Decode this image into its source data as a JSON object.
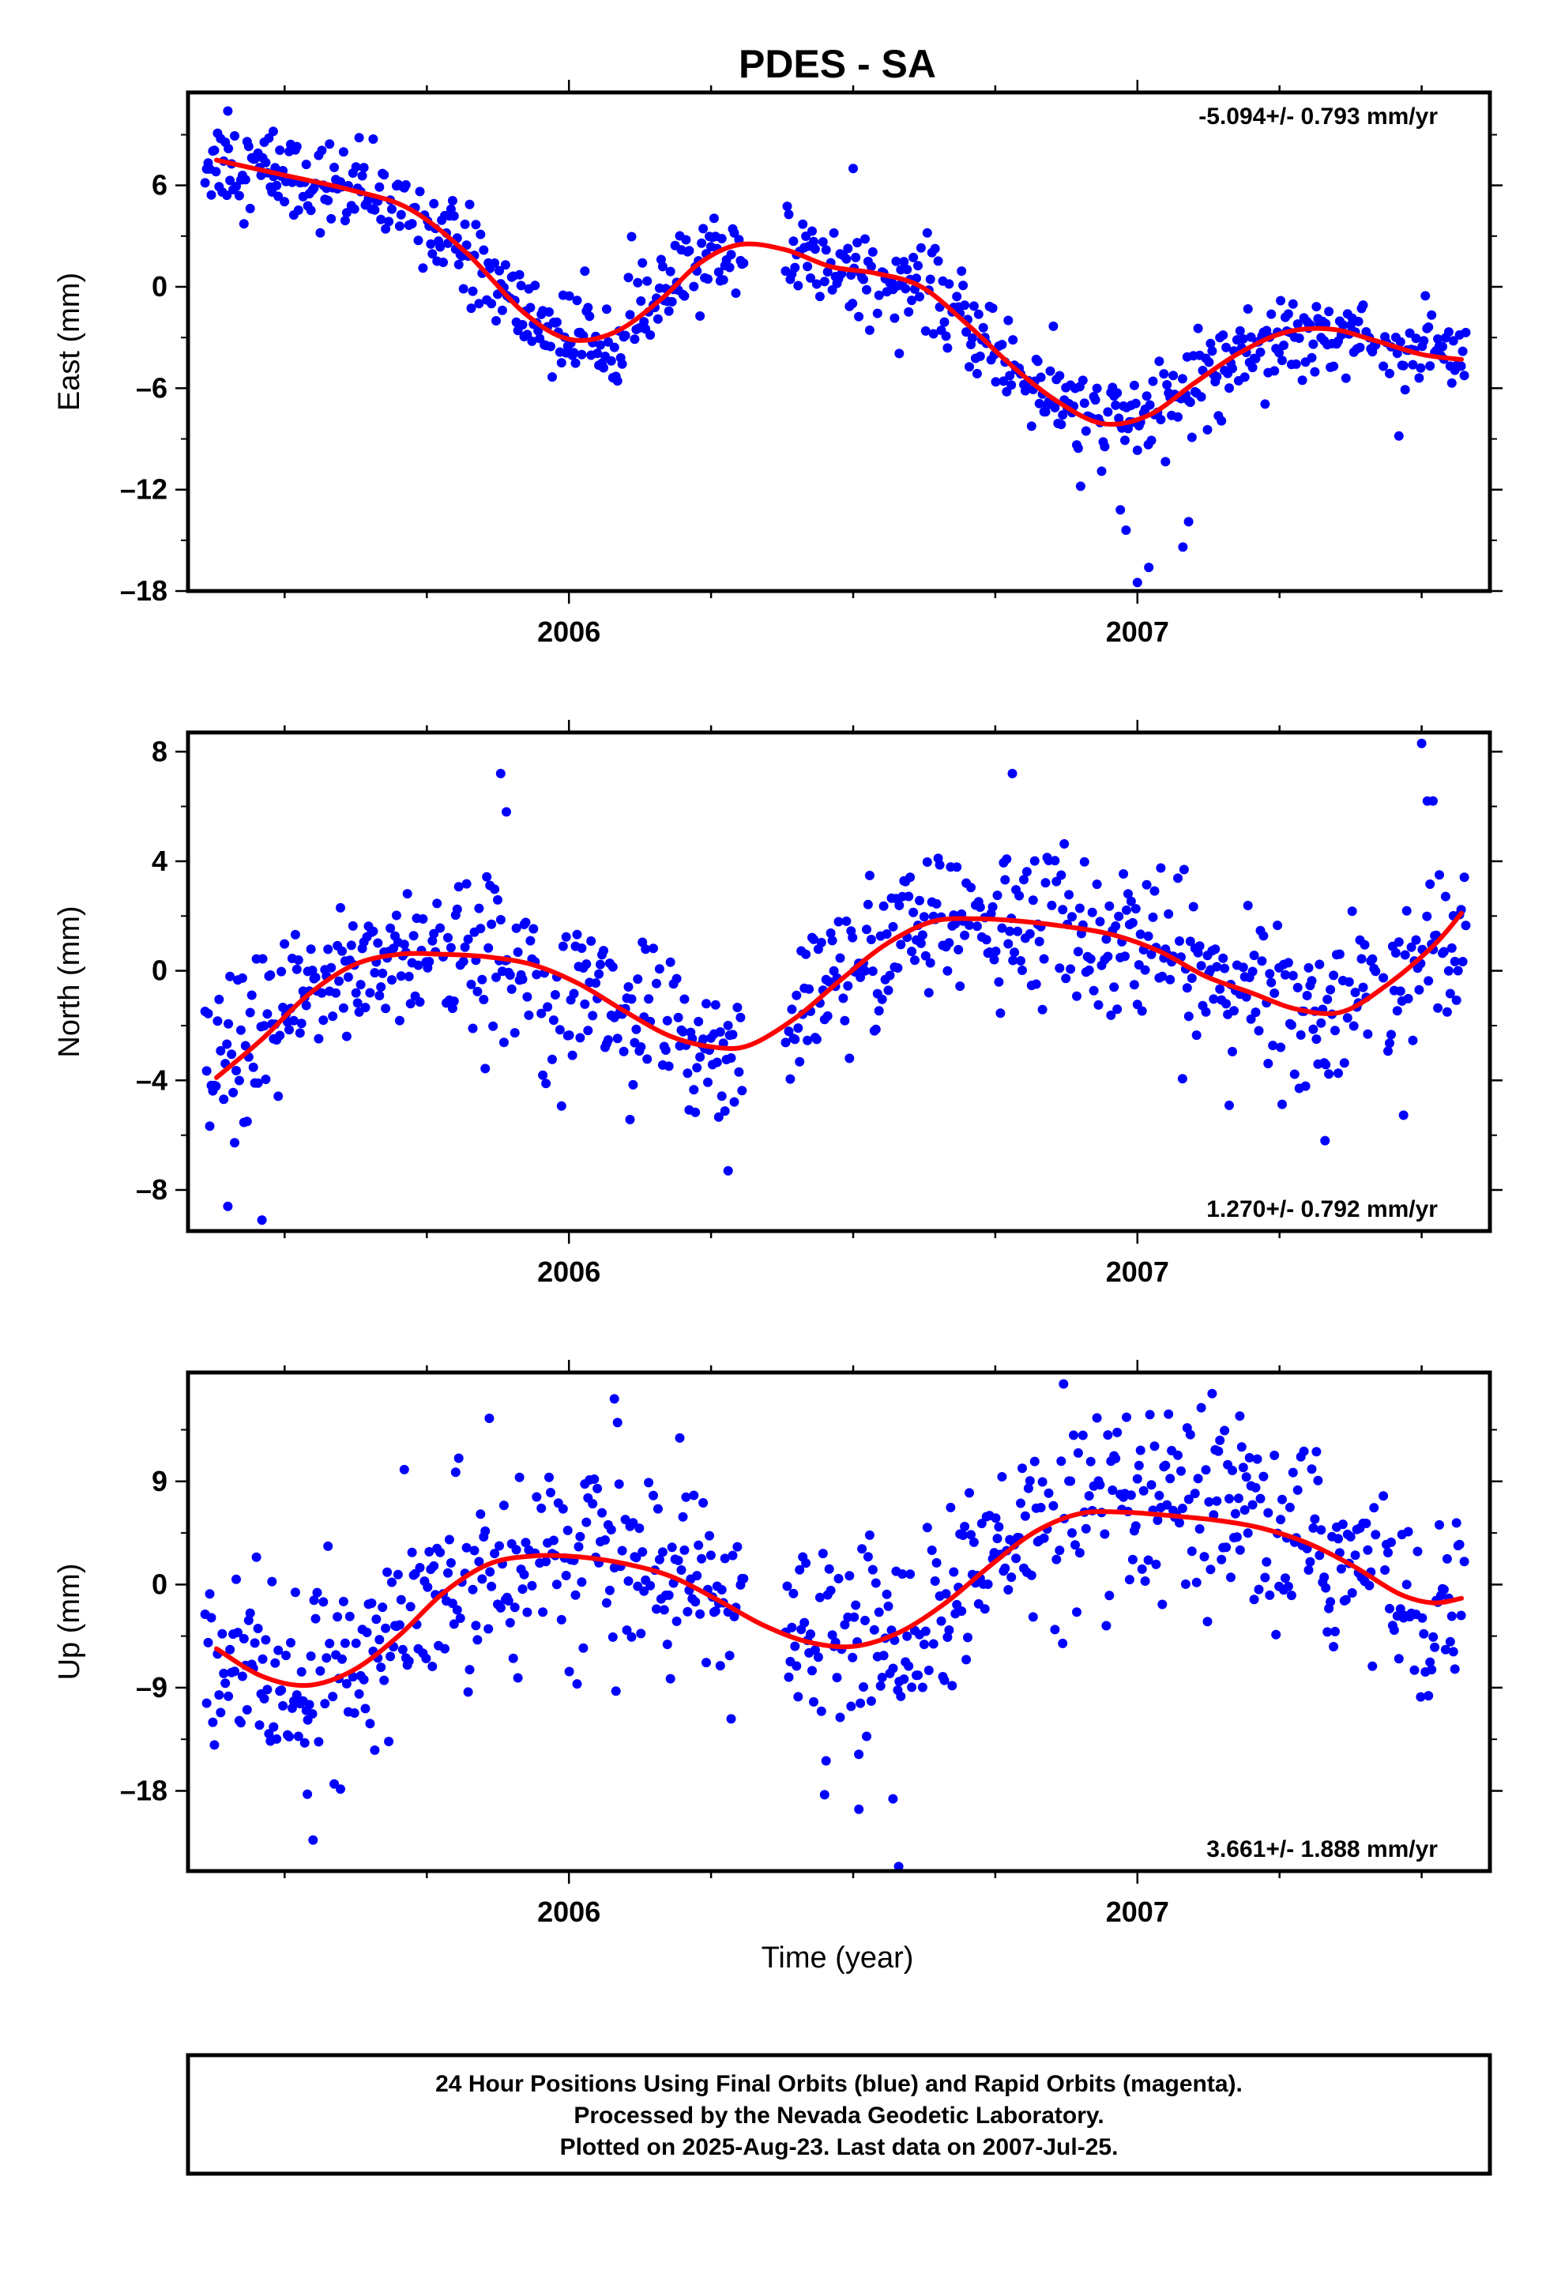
{
  "figure": {
    "title": "PDES - SA",
    "xlabel": "Time (year)",
    "footer": {
      "line1": "24 Hour Positions Using Final Orbits (blue) and Rapid Orbits (magenta).",
      "line2": "Processed by the Nevada Geodetic Laboratory.",
      "line3": "Plotted on 2025-Aug-23. Last data on 2007-Jul-25."
    },
    "colors": {
      "points": "#0000ff",
      "fit": "#ff0000",
      "frame": "#000000"
    }
  },
  "chart_data": [
    {
      "type": "scatter",
      "ylabel": "East (mm)",
      "rate_label": "-5.094+/- 0.793 mm/yr",
      "xlim": [
        2005.33,
        2007.62
      ],
      "ylim": [
        -18,
        11.5
      ],
      "x_ticks": [
        2006,
        2007
      ],
      "x_tick_labels": [
        "2006",
        "2007"
      ],
      "y_ticks": [
        -18,
        -12,
        -6,
        0,
        6
      ],
      "y_tick_labels": [
        "–18",
        "–12",
        "–6",
        "0",
        "6"
      ],
      "scatter_noise_mm": 1.3,
      "fit_series": {
        "name": "model fit",
        "x": [
          2005.38,
          2005.5,
          2005.62,
          2005.72,
          2005.82,
          2005.92,
          2006.0,
          2006.08,
          2006.16,
          2006.23,
          2006.3,
          2006.38,
          2006.46,
          2006.54,
          2006.62,
          2006.7,
          2006.78,
          2006.86,
          2006.94,
          2007.02,
          2007.1,
          2007.18,
          2007.26,
          2007.34,
          2007.42,
          2007.5,
          2007.57
        ],
        "y": [
          7.5,
          6.6,
          5.7,
          4.6,
          2.0,
          -1.5,
          -3.1,
          -2.7,
          -0.8,
          1.4,
          2.5,
          2.2,
          1.2,
          0.8,
          0.0,
          -2.2,
          -4.7,
          -6.8,
          -8.1,
          -7.6,
          -5.7,
          -3.9,
          -2.7,
          -2.5,
          -3.2,
          -4.0,
          -4.3
        ]
      },
      "gaps": [
        [
          2006.31,
          2006.38
        ],
        [
          2007.42,
          2007.43
        ]
      ],
      "outliers": [
        [
          2005.4,
          10.4
        ],
        [
          2005.48,
          9.2
        ],
        [
          2006.5,
          7.0
        ],
        [
          2006.97,
          -13.2
        ],
        [
          2006.98,
          -14.4
        ],
        [
          2007.0,
          -17.5
        ],
        [
          2007.02,
          -16.6
        ],
        [
          2007.08,
          -15.4
        ],
        [
          2007.09,
          -13.9
        ],
        [
          2006.9,
          -11.8
        ]
      ]
    },
    {
      "type": "scatter",
      "ylabel": "North (mm)",
      "rate_label": "1.270+/- 0.792 mm/yr",
      "xlim": [
        2005.33,
        2007.62
      ],
      "ylim": [
        -9.5,
        8.7
      ],
      "x_ticks": [
        2006,
        2007
      ],
      "x_tick_labels": [
        "2006",
        "2007"
      ],
      "y_ticks": [
        -8,
        -4,
        0,
        4,
        8
      ],
      "y_tick_labels": [
        "–8",
        "–4",
        "0",
        "4",
        "8"
      ],
      "scatter_noise_mm": 1.4,
      "fit_series": {
        "name": "model fit",
        "x": [
          2005.38,
          2005.46,
          2005.54,
          2005.62,
          2005.7,
          2005.78,
          2005.86,
          2005.94,
          2006.02,
          2006.1,
          2006.18,
          2006.26,
          2006.32,
          2006.4,
          2006.48,
          2006.56,
          2006.64,
          2006.72,
          2006.8,
          2006.88,
          2006.96,
          2007.04,
          2007.12,
          2007.2,
          2007.28,
          2007.36,
          2007.44,
          2007.52,
          2007.57
        ],
        "y": [
          -3.9,
          -2.5,
          -0.9,
          0.2,
          0.6,
          0.6,
          0.5,
          0.2,
          -0.5,
          -1.5,
          -2.4,
          -2.8,
          -2.7,
          -1.7,
          -0.3,
          1.0,
          1.8,
          1.9,
          1.8,
          1.6,
          1.3,
          0.7,
          -0.2,
          -0.8,
          -1.4,
          -1.5,
          -0.5,
          0.9,
          2.1
        ]
      },
      "gaps": [
        [
          2006.31,
          2006.38
        ],
        [
          2007.42,
          2007.43
        ]
      ],
      "outliers": [
        [
          2005.88,
          7.2
        ],
        [
          2005.89,
          5.8
        ],
        [
          2006.78,
          7.2
        ],
        [
          2007.5,
          8.3
        ],
        [
          2007.51,
          6.2
        ],
        [
          2007.52,
          6.2
        ],
        [
          2005.4,
          -8.6
        ],
        [
          2005.46,
          -9.1
        ],
        [
          2006.28,
          -7.3
        ],
        [
          2007.33,
          -6.2
        ]
      ]
    },
    {
      "type": "scatter",
      "ylabel": "Up (mm)",
      "rate_label": "3.661+/- 1.888 mm/yr",
      "xlim": [
        2005.33,
        2007.62
      ],
      "ylim": [
        -25,
        18.5
      ],
      "x_ticks": [
        2006,
        2007
      ],
      "x_tick_labels": [
        "2006",
        "2007"
      ],
      "y_ticks": [
        -18,
        -9,
        0,
        9
      ],
      "y_tick_labels": [
        "–18",
        "–9",
        "0",
        "9"
      ],
      "scatter_noise_mm": 4.2,
      "fit_series": {
        "name": "model fit",
        "x": [
          2005.38,
          2005.46,
          2005.54,
          2005.62,
          2005.7,
          2005.78,
          2005.86,
          2005.94,
          2006.02,
          2006.1,
          2006.18,
          2006.26,
          2006.34,
          2006.42,
          2006.5,
          2006.58,
          2006.66,
          2006.74,
          2006.82,
          2006.9,
          2006.98,
          2007.06,
          2007.14,
          2007.22,
          2007.3,
          2007.38,
          2007.46,
          2007.52,
          2007.57
        ],
        "y": [
          -5.6,
          -8.0,
          -8.8,
          -7.5,
          -4.5,
          -0.7,
          1.8,
          2.5,
          2.4,
          1.8,
          0.7,
          -1.3,
          -3.5,
          -5.0,
          -5.4,
          -4.2,
          -1.7,
          1.6,
          4.6,
          6.2,
          6.3,
          6.0,
          5.6,
          4.9,
          3.6,
          1.6,
          -0.8,
          -1.6,
          -1.2
        ]
      },
      "gaps": [
        [
          2006.31,
          2006.38
        ],
        [
          2007.42,
          2007.43
        ]
      ],
      "outliers": [
        [
          2005.55,
          -22.3
        ],
        [
          2005.54,
          -18.3
        ],
        [
          2006.51,
          -19.6
        ],
        [
          2006.57,
          -18.7
        ],
        [
          2006.58,
          -24.6
        ],
        [
          2006.87,
          17.5
        ],
        [
          2006.08,
          16.2
        ],
        [
          2005.86,
          14.5
        ],
        [
          2007.18,
          14.7
        ]
      ]
    }
  ]
}
